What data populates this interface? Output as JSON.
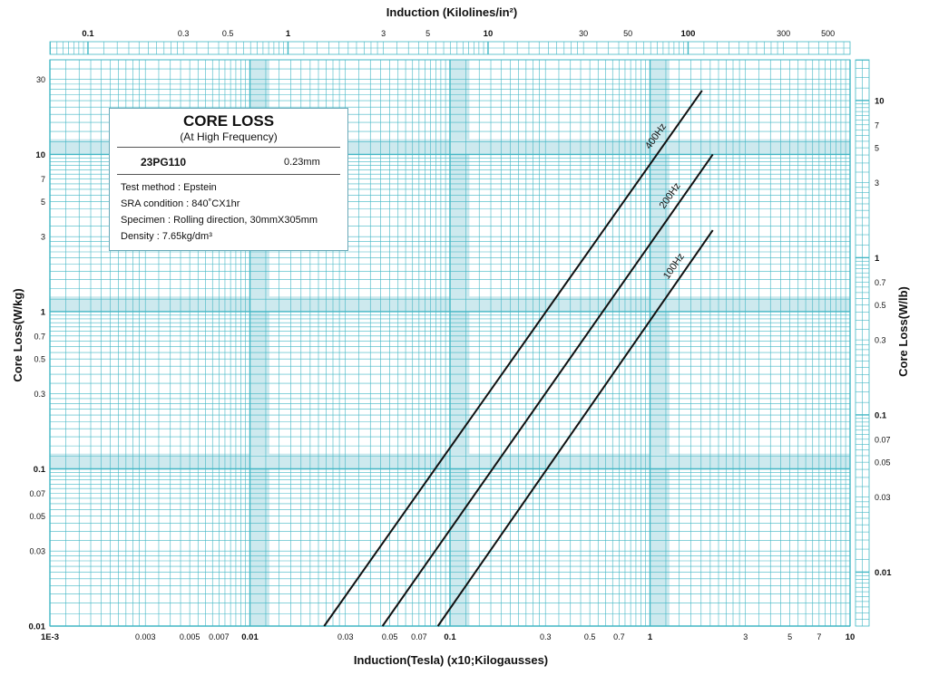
{
  "chart_data": {
    "type": "line",
    "title": "",
    "xlabel": "Induction(Tesla) (x10;Kilogausses)",
    "ylabel": "Core Loss(W/kg)",
    "x_scale": "log",
    "y_scale": "log",
    "xlim": [
      0.001,
      10
    ],
    "ylim": [
      0.01,
      40
    ],
    "x_tick_labels": [
      {
        "value": 0.001,
        "label": "1E-3",
        "bold": true
      },
      {
        "value": 0.003,
        "label": "0.003",
        "bold": false
      },
      {
        "value": 0.005,
        "label": "0.005",
        "bold": false
      },
      {
        "value": 0.007,
        "label": "0.007",
        "bold": false
      },
      {
        "value": 0.01,
        "label": "0.01",
        "bold": true
      },
      {
        "value": 0.03,
        "label": "0.03",
        "bold": false
      },
      {
        "value": 0.05,
        "label": "0.05",
        "bold": false
      },
      {
        "value": 0.07,
        "label": "0.07",
        "bold": false
      },
      {
        "value": 0.1,
        "label": "0.1",
        "bold": true
      },
      {
        "value": 0.3,
        "label": "0.3",
        "bold": false
      },
      {
        "value": 0.5,
        "label": "0.5",
        "bold": false
      },
      {
        "value": 0.7,
        "label": "0.7",
        "bold": false
      },
      {
        "value": 1,
        "label": "1",
        "bold": true
      },
      {
        "value": 3,
        "label": "3",
        "bold": false
      },
      {
        "value": 5,
        "label": "5",
        "bold": false
      },
      {
        "value": 7,
        "label": "7",
        "bold": false
      },
      {
        "value": 10,
        "label": "10",
        "bold": true
      }
    ],
    "y_tick_labels": [
      {
        "value": 0.01,
        "label": "0.01",
        "bold": true
      },
      {
        "value": 0.03,
        "label": "0.03",
        "bold": false
      },
      {
        "value": 0.05,
        "label": "0.05",
        "bold": false
      },
      {
        "value": 0.07,
        "label": "0.07",
        "bold": false
      },
      {
        "value": 0.1,
        "label": "0.1",
        "bold": true
      },
      {
        "value": 0.3,
        "label": "0.3",
        "bold": false
      },
      {
        "value": 0.5,
        "label": "0.5",
        "bold": false
      },
      {
        "value": 0.7,
        "label": "0.7",
        "bold": false
      },
      {
        "value": 1,
        "label": "1",
        "bold": true
      },
      {
        "value": 3,
        "label": "3",
        "bold": false
      },
      {
        "value": 5,
        "label": "5",
        "bold": false
      },
      {
        "value": 7,
        "label": "7",
        "bold": false
      },
      {
        "value": 10,
        "label": "10",
        "bold": true
      },
      {
        "value": 30,
        "label": "30",
        "bold": false
      }
    ],
    "top_axis": {
      "label": "Induction (Kilolines/in²)",
      "lim": [
        0.06452,
        645.2
      ],
      "tick_labels": [
        {
          "value": 0.1,
          "label": "0.1",
          "bold": true
        },
        {
          "value": 0.3,
          "label": "0.3",
          "bold": false
        },
        {
          "value": 0.5,
          "label": "0.5",
          "bold": false
        },
        {
          "value": 1,
          "label": "1",
          "bold": true
        },
        {
          "value": 3,
          "label": "3",
          "bold": false
        },
        {
          "value": 5,
          "label": "5",
          "bold": false
        },
        {
          "value": 10,
          "label": "10",
          "bold": true
        },
        {
          "value": 30,
          "label": "30",
          "bold": false
        },
        {
          "value": 50,
          "label": "50",
          "bold": false
        },
        {
          "value": 100,
          "label": "100",
          "bold": true
        },
        {
          "value": 300,
          "label": "300",
          "bold": false
        },
        {
          "value": 500,
          "label": "500",
          "bold": false
        }
      ]
    },
    "right_axis": {
      "label": "Core Loss(W/lb)",
      "lim": [
        0.004536,
        18.14
      ],
      "tick_labels": [
        {
          "value": 0.01,
          "label": "0.01",
          "bold": true
        },
        {
          "value": 0.03,
          "label": "0.03",
          "bold": false
        },
        {
          "value": 0.05,
          "label": "0.05",
          "bold": false
        },
        {
          "value": 0.07,
          "label": "0.07",
          "bold": false
        },
        {
          "value": 0.1,
          "label": "0.1",
          "bold": true
        },
        {
          "value": 0.3,
          "label": "0.3",
          "bold": false
        },
        {
          "value": 0.5,
          "label": "0.5",
          "bold": false
        },
        {
          "value": 0.7,
          "label": "0.7",
          "bold": false
        },
        {
          "value": 1,
          "label": "1",
          "bold": true
        },
        {
          "value": 3,
          "label": "3",
          "bold": false
        },
        {
          "value": 5,
          "label": "5",
          "bold": false
        },
        {
          "value": 7,
          "label": "7",
          "bold": false
        },
        {
          "value": 10,
          "label": "10",
          "bold": true
        }
      ]
    },
    "series": [
      {
        "name": "400Hz",
        "x": [
          0.0235,
          1.82
        ],
        "y": [
          0.01,
          25.5
        ]
      },
      {
        "name": "200Hz",
        "x": [
          0.046,
          2.06
        ],
        "y": [
          0.01,
          10.0
        ]
      },
      {
        "name": "100Hz",
        "x": [
          0.087,
          2.06
        ],
        "y": [
          0.01,
          3.3
        ]
      }
    ],
    "grid": true,
    "colors": {
      "grid": "#41b6c4",
      "grid_band": "#cde9ee",
      "line": "#111111",
      "text": "#111111"
    }
  },
  "legend": {
    "title": "CORE LOSS",
    "subtitle": "(At High Frequency)",
    "grade": "23PG110",
    "thickness": "0.23mm",
    "lines": [
      "Test method : Epstein",
      "SRA condition : 840˚CX1hr",
      "Specimen : Rolling direction, 30mmX305mm",
      "Density : 7.65kg/dm³"
    ]
  }
}
